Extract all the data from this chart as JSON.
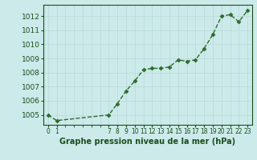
{
  "x": [
    0,
    1,
    7,
    8,
    9,
    10,
    11,
    12,
    13,
    14,
    15,
    16,
    17,
    18,
    19,
    20,
    21,
    22,
    23
  ],
  "y": [
    1005.0,
    1004.6,
    1005.0,
    1005.8,
    1006.7,
    1007.4,
    1008.2,
    1008.3,
    1008.3,
    1008.4,
    1008.9,
    1008.8,
    1008.9,
    1009.7,
    1010.7,
    1012.0,
    1012.1,
    1011.6,
    1012.4
  ],
  "line_color": "#2d6a2d",
  "marker": "D",
  "marker_size": 2.5,
  "bg_color": "#cceaea",
  "grid_color": "#b8d8d8",
  "text_color": "#1a4d1a",
  "title": "Graphe pression niveau de la mer (hPa)",
  "ylim": [
    1004.3,
    1012.8
  ],
  "xlim": [
    -0.5,
    23.5
  ],
  "yticks": [
    1005,
    1006,
    1007,
    1008,
    1009,
    1010,
    1011,
    1012
  ],
  "xtick_show": [
    0,
    1,
    7,
    8,
    9,
    10,
    11,
    12,
    13,
    14,
    15,
    16,
    17,
    18,
    19,
    20,
    21,
    22,
    23
  ],
  "ytick_fontsize": 6.5,
  "xtick_fontsize": 5.5,
  "title_fontsize": 7,
  "linewidth": 1.0
}
